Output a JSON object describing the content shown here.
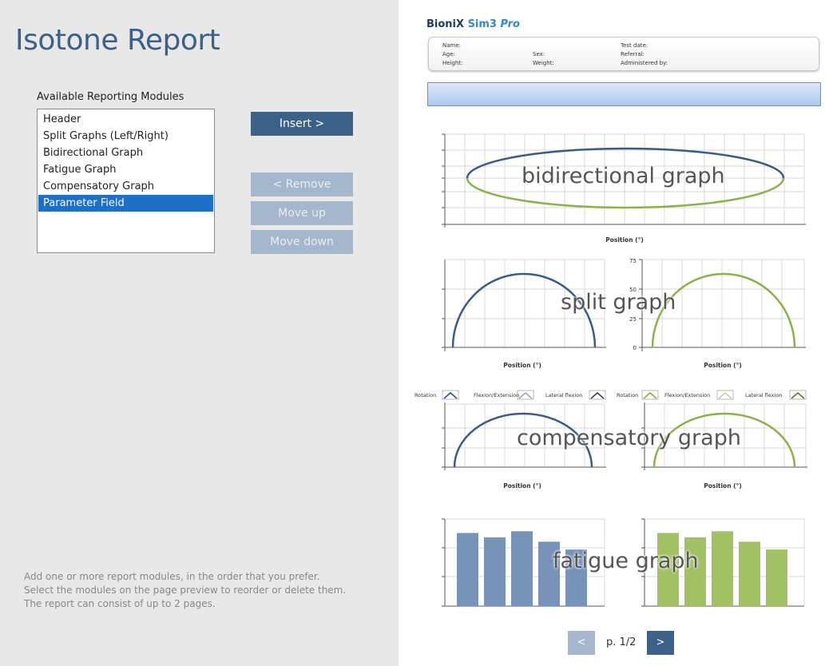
{
  "left": {
    "title": "Isotone Report",
    "list_label": "Available Reporting Modules",
    "modules": [
      {
        "label": "Header"
      },
      {
        "label": "Split Graphs (Left/Right)"
      },
      {
        "label": "Bidirectional Graph"
      },
      {
        "label": "Fatigue Graph"
      },
      {
        "label": "Compensatory Graph"
      },
      {
        "label": "Parameter Field",
        "selected": true
      }
    ],
    "buttons": {
      "insert": "Insert >",
      "remove": "< Remove",
      "move_up": "Move up",
      "move_down": "Move down"
    },
    "help": [
      "Add one or more report modules, in the order that you prefer.",
      "Select the modules on the page preview to reorder or delete them.",
      "The report can consist of up to 2 pages."
    ]
  },
  "preview": {
    "brand": {
      "name": "BioniX",
      "sim": "Sim3",
      "pro": "Pro"
    },
    "header_fields": {
      "name": "Name:",
      "age": "Age:",
      "height": "Height:",
      "sex": "Sex:",
      "weight": "Weight:",
      "test_date": "Test date:",
      "referral": "Referral:",
      "administered_by": "Administered by:"
    },
    "overlays": {
      "bidirectional": "bidirectional graph",
      "split": "split graph",
      "compensatory": "compensatory graph",
      "fatigue": "fatigue graph"
    },
    "axis_label": "Position (°)",
    "split_yticks": [
      "75",
      "50",
      "25",
      "0"
    ],
    "legend": {
      "rotation": "Rotation",
      "flexion": "Flexion/Extension",
      "lateral": "Lateral flexion"
    },
    "pager": {
      "prev": "<",
      "next": ">",
      "page": "p. 1/2"
    }
  },
  "colors": {
    "accent": "#3b6189",
    "selected": "#1d6fc7",
    "blue_series": "#3b5b87",
    "green_series": "#8db14a",
    "blue_bar": "#7893b8",
    "green_bar": "#a2c064"
  },
  "chart_data": [
    {
      "type": "bar",
      "name": "fatigue-left",
      "values": [
        0.84,
        0.79,
        0.86,
        0.74,
        0.65
      ],
      "color": "#7893b8"
    },
    {
      "type": "bar",
      "name": "fatigue-right",
      "values": [
        0.84,
        0.79,
        0.86,
        0.74,
        0.65
      ],
      "color": "#a2c064"
    }
  ]
}
